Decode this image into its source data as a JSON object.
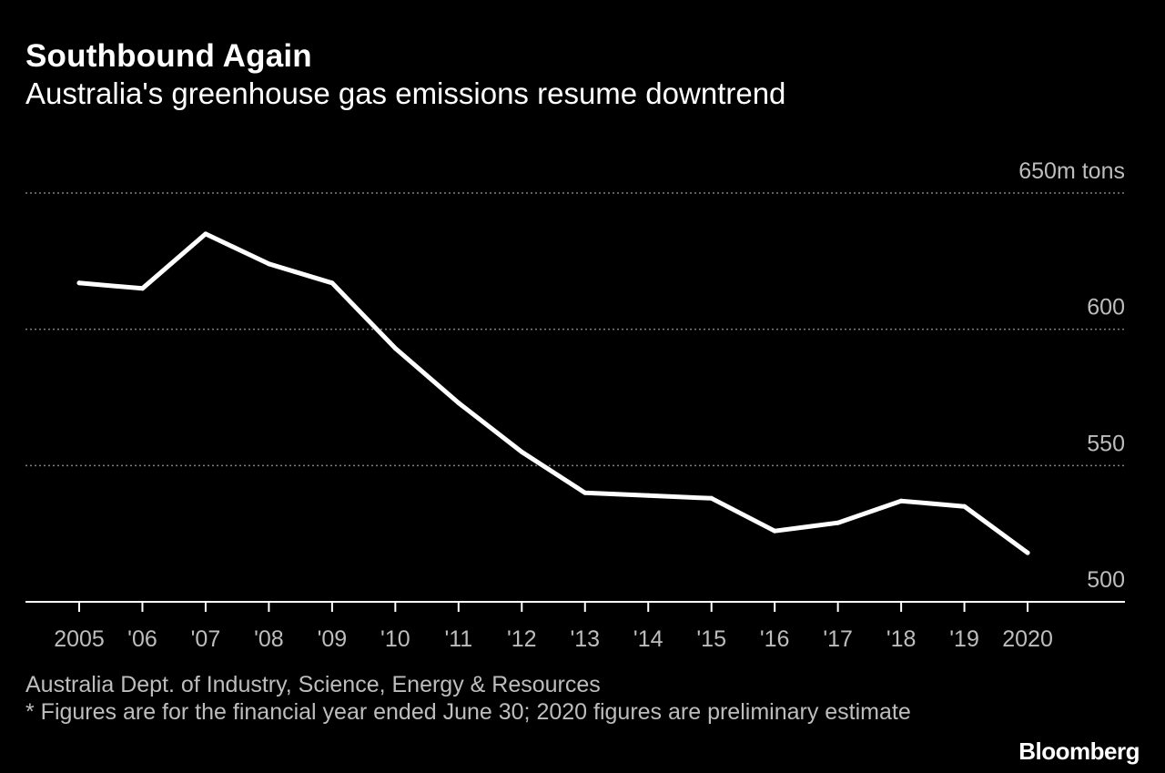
{
  "chart_data": {
    "type": "line",
    "title": "Southbound Again",
    "subtitle": "Australia's greenhouse gas emissions resume downtrend",
    "xlabel": "",
    "ylabel": "",
    "unit_label": "650m tons",
    "categories": [
      "2005",
      "'06",
      "'07",
      "'08",
      "'09",
      "'10",
      "'11",
      "'12",
      "'13",
      "'14",
      "'15",
      "'16",
      "'17",
      "'18",
      "'19",
      "2020"
    ],
    "series": [
      {
        "name": "Greenhouse gas emissions (m tons)",
        "values": [
          617,
          615,
          635,
          624,
          617,
          593,
          573,
          555,
          540,
          539,
          538,
          526,
          529,
          537,
          535,
          518
        ]
      }
    ],
    "ylim": [
      500,
      650
    ],
    "yticks": [
      500,
      550,
      600,
      650
    ],
    "ytick_labels": [
      "500",
      "550",
      "600",
      "650m tons"
    ],
    "grid": true,
    "line_color": "#ffffff",
    "grid_color": "#7f7f7f"
  },
  "footer": {
    "source": "Australia Dept. of Industry, Science, Energy & Resources",
    "note": "* Figures are for the financial year ended June 30; 2020 figures are preliminary estimate",
    "brand": "Bloomberg"
  }
}
